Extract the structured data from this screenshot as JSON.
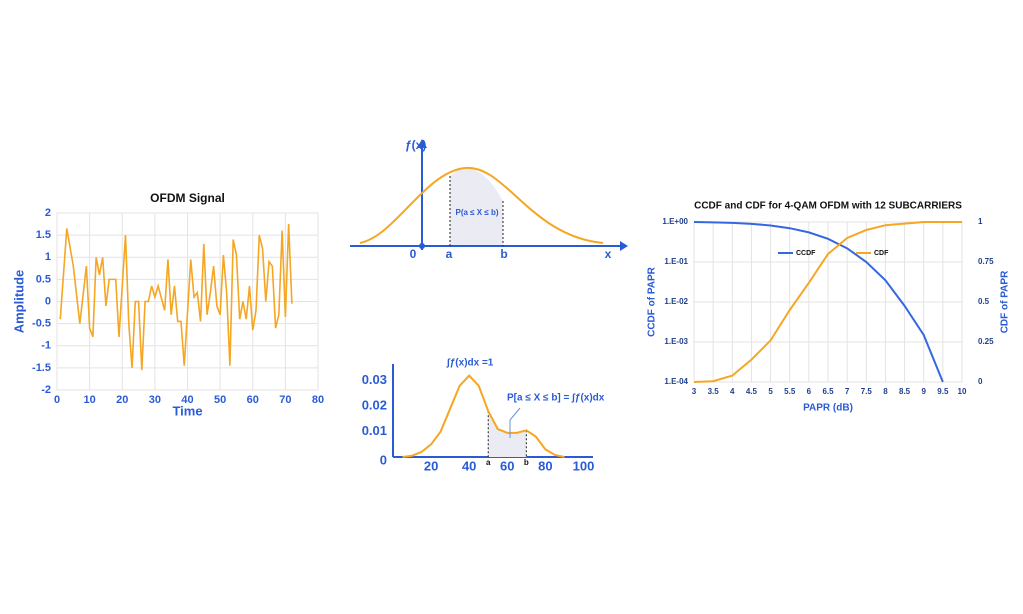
{
  "chart_data": [
    {
      "type": "line",
      "title": "OFDM Signal",
      "x_label": "Time",
      "y_label": "Amplitude",
      "x": [
        1,
        3,
        5,
        7,
        9,
        10,
        11,
        12,
        13,
        14,
        15,
        16,
        18,
        19,
        21,
        22,
        23,
        24,
        25,
        26,
        27,
        28,
        29,
        30,
        31,
        33,
        34,
        35,
        36,
        37,
        38,
        39,
        41,
        42,
        43,
        44,
        45,
        46,
        47,
        48,
        49,
        50,
        51,
        52,
        53,
        54,
        55,
        56,
        57,
        58,
        59,
        60,
        61,
        62,
        63,
        64,
        65,
        66,
        67,
        68,
        69,
        70,
        71,
        72
      ],
      "series": [
        {
          "name": "OFDM",
          "color": "#f5a623",
          "values": [
            -0.4,
            1.65,
            0.8,
            -0.5,
            0.8,
            -0.6,
            -0.8,
            1.0,
            0.6,
            1.0,
            -0.1,
            0.5,
            0.5,
            -0.8,
            1.5,
            -0.5,
            -1.5,
            0,
            0,
            -1.55,
            0,
            0,
            0.35,
            0.1,
            0.35,
            -0.2,
            0.95,
            -0.3,
            0.35,
            -0.45,
            -0.45,
            -1.45,
            0.95,
            0.1,
            0.2,
            -0.45,
            1.3,
            -0.3,
            0.2,
            0.8,
            -0.1,
            -0.3,
            1.05,
            0.2,
            -1.45,
            1.4,
            1.05,
            -0.4,
            0,
            -0.4,
            0.35,
            -0.65,
            -0.2,
            1.5,
            1.2,
            0,
            0.9,
            0.8,
            -0.6,
            -0.3,
            1.6,
            -0.35,
            1.75,
            -0.05
          ]
        }
      ],
      "xlim": [
        0,
        80
      ],
      "xticks": [
        0,
        10,
        20,
        30,
        40,
        50,
        60,
        70,
        80
      ],
      "ylim": [
        -2,
        2
      ],
      "yticks": [
        -2,
        -1.5,
        -1,
        -0.5,
        0,
        0.5,
        1,
        1.5,
        2
      ],
      "grid": true
    },
    {
      "type": "area",
      "x": [
        5,
        10,
        15,
        20,
        25,
        30,
        35,
        40,
        45,
        50,
        55,
        60,
        65,
        70,
        75,
        80,
        85,
        90
      ],
      "series": [
        {
          "name": "f(x)",
          "color": "#f5a623",
          "values": [
            0,
            0.0005,
            0.002,
            0.005,
            0.01,
            0.019,
            0.028,
            0.032,
            0.028,
            0.018,
            0.011,
            0.0095,
            0.0095,
            0.0105,
            0.008,
            0.003,
            0.0008,
            0
          ]
        }
      ],
      "xlim": [
        0,
        105
      ],
      "xticks": [
        20,
        40,
        60,
        80,
        100
      ],
      "ylim": [
        0,
        0.035
      ],
      "yticks": [
        0,
        0.01,
        0.02,
        0.03
      ],
      "grid": false,
      "shade": {
        "from": 50,
        "to": 70,
        "from_label": "a",
        "to_label": "b"
      },
      "annotations": [
        "∫ƒ(x)dx =1",
        "P[a ≤ X ≤ b] = ∫ƒ(x)dx"
      ]
    },
    {
      "type": "line",
      "title": "CCDF and CDF for 4-QAM OFDM with 12 SUBCARRIERS",
      "x_label": "PAPR (dB)",
      "y_label": "CCDF of PAPR",
      "y2_label": "CDF of PAPR",
      "x": [
        3,
        3.5,
        4,
        4.5,
        5,
        5.5,
        6,
        6.5,
        7,
        7.5,
        8,
        8.5,
        9,
        9.5,
        10
      ],
      "series": [
        {
          "name": "CCDF",
          "color": "#3568e0",
          "values": [
            1,
            0.98,
            0.95,
            0.9,
            0.82,
            0.7,
            0.55,
            0.38,
            0.22,
            0.1,
            0.035,
            0.008,
            0.0015,
            0.0001,
            null
          ]
        },
        {
          "name": "CDF",
          "color": "#f5a623",
          "axis": "y2",
          "values": [
            0,
            0.005,
            0.04,
            0.14,
            0.26,
            0.45,
            0.62,
            0.8,
            0.9,
            0.95,
            0.98,
            0.99,
            1,
            1,
            1
          ]
        }
      ],
      "xlim": [
        3,
        10
      ],
      "xticks": [
        3,
        3.5,
        4,
        4.5,
        5,
        5.5,
        6,
        6.5,
        7,
        7.5,
        8,
        8.5,
        9,
        9.5,
        10
      ],
      "ylim": [
        0.0001,
        1
      ],
      "y_scale": "log",
      "yticks": [
        {
          "value": 0.0001,
          "label": "1.E-04"
        },
        {
          "value": 0.001,
          "label": "1.E-03"
        },
        {
          "value": 0.01,
          "label": "1.E-02"
        },
        {
          "value": 0.1,
          "label": "1.E-01"
        },
        {
          "value": 1,
          "label": "1.E+00"
        }
      ],
      "y2lim": [
        0,
        1
      ],
      "y2ticks": [
        0,
        0.25,
        0.5,
        0.75,
        1
      ],
      "grid": true,
      "legend": "upper center"
    }
  ],
  "pdf_diagram": {
    "y_label": "ƒ(x)",
    "x_label": "x",
    "origin_label": "0",
    "a_label": "a",
    "b_label": "b",
    "area_label": "P(a ≤ X ≤ b)"
  }
}
